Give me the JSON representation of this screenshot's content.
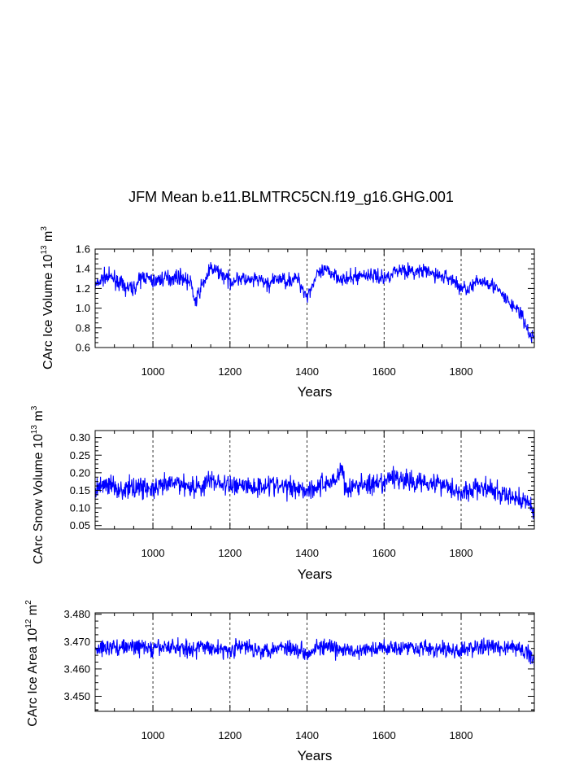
{
  "chart_data": [
    {
      "type": "line",
      "title": "JFM Mean b.e11.BLMTRC5CN.f19_g16.GHG.001",
      "xlabel": "Years",
      "ylabel": {
        "prefix": "CArc Ice Volume 10",
        "exponent": "13",
        "unit": " m",
        "unit_exponent": "3"
      },
      "xlim": [
        850,
        1990
      ],
      "ylim": [
        0.6,
        1.6
      ],
      "xticks": [
        1000,
        1200,
        1400,
        1600,
        1800
      ],
      "xtick_labels": [
        "1000",
        "1200",
        "1400",
        "1600",
        "1800"
      ],
      "yticks": [
        0.6,
        0.8,
        1.0,
        1.2,
        1.4,
        1.6
      ],
      "ytick_labels": [
        "0.6",
        "0.8",
        "1.0",
        "1.2",
        "1.4",
        "1.6"
      ],
      "grid": "dashed vertical at x ticks",
      "line_color": "#0000ff",
      "series": [
        {
          "x": [
            850,
            875,
            900,
            925,
            950,
            975,
            1000,
            1025,
            1050,
            1075,
            1100,
            1110,
            1125,
            1150,
            1175,
            1200,
            1225,
            1250,
            1275,
            1300,
            1325,
            1350,
            1375,
            1400,
            1425,
            1450,
            1475,
            1500,
            1525,
            1550,
            1575,
            1600,
            1625,
            1650,
            1675,
            1700,
            1725,
            1750,
            1775,
            1800,
            1825,
            1850,
            1875,
            1900,
            1925,
            1950,
            1975,
            1990
          ],
          "values": [
            1.22,
            1.32,
            1.3,
            1.21,
            1.2,
            1.33,
            1.27,
            1.3,
            1.31,
            1.32,
            1.24,
            1.05,
            1.21,
            1.4,
            1.36,
            1.27,
            1.31,
            1.27,
            1.29,
            1.24,
            1.3,
            1.28,
            1.3,
            1.12,
            1.33,
            1.38,
            1.34,
            1.28,
            1.32,
            1.34,
            1.33,
            1.3,
            1.37,
            1.4,
            1.36,
            1.38,
            1.35,
            1.32,
            1.3,
            1.2,
            1.21,
            1.28,
            1.26,
            1.16,
            1.05,
            0.98,
            0.75,
            0.68
          ]
        }
      ]
    },
    {
      "type": "line",
      "xlabel": "Years",
      "ylabel": {
        "prefix": "CArc Snow Volume 10",
        "exponent": "13",
        "unit": " m",
        "unit_exponent": "3"
      },
      "xlim": [
        850,
        1990
      ],
      "ylim": [
        0.04,
        0.32
      ],
      "xticks": [
        1000,
        1200,
        1400,
        1600,
        1800
      ],
      "xtick_labels": [
        "1000",
        "1200",
        "1400",
        "1600",
        "1800"
      ],
      "yticks": [
        0.05,
        0.1,
        0.15,
        0.2,
        0.25,
        0.3
      ],
      "ytick_labels": [
        "0.05",
        "0.10",
        "0.15",
        "0.20",
        "0.25",
        "0.30"
      ],
      "grid": "dashed vertical at x ticks",
      "line_color": "#0000ff",
      "series": [
        {
          "x": [
            850,
            875,
            900,
            925,
            950,
            975,
            1000,
            1025,
            1050,
            1075,
            1100,
            1125,
            1150,
            1175,
            1200,
            1225,
            1250,
            1275,
            1300,
            1325,
            1350,
            1375,
            1400,
            1425,
            1450,
            1475,
            1490,
            1500,
            1525,
            1550,
            1575,
            1600,
            1625,
            1650,
            1675,
            1700,
            1725,
            1750,
            1775,
            1800,
            1825,
            1850,
            1875,
            1900,
            1925,
            1950,
            1975,
            1990
          ],
          "values": [
            0.15,
            0.17,
            0.16,
            0.15,
            0.16,
            0.16,
            0.15,
            0.16,
            0.17,
            0.17,
            0.16,
            0.16,
            0.18,
            0.17,
            0.16,
            0.17,
            0.16,
            0.16,
            0.17,
            0.16,
            0.16,
            0.16,
            0.15,
            0.16,
            0.17,
            0.18,
            0.22,
            0.15,
            0.16,
            0.17,
            0.16,
            0.17,
            0.19,
            0.18,
            0.17,
            0.18,
            0.17,
            0.17,
            0.16,
            0.14,
            0.15,
            0.16,
            0.15,
            0.14,
            0.13,
            0.13,
            0.11,
            0.09
          ]
        }
      ]
    },
    {
      "type": "line",
      "xlabel": "Years",
      "ylabel": {
        "prefix": "CArc Ice Area 10",
        "exponent": "12",
        "unit": " m",
        "unit_exponent": "2"
      },
      "xlim": [
        850,
        1990
      ],
      "ylim": [
        3.4445,
        3.4805
      ],
      "xticks": [
        1000,
        1200,
        1400,
        1600,
        1800
      ],
      "xtick_labels": [
        "1000",
        "1200",
        "1400",
        "1600",
        "1800"
      ],
      "yticks": [
        3.45,
        3.46,
        3.47,
        3.48
      ],
      "ytick_labels": [
        "3.450",
        "3.460",
        "3.470",
        "3.480"
      ],
      "grid": "dashed vertical at x ticks",
      "line_color": "#0000ff",
      "series": [
        {
          "x": [
            850,
            875,
            900,
            925,
            950,
            975,
            1000,
            1025,
            1050,
            1075,
            1100,
            1125,
            1150,
            1175,
            1200,
            1225,
            1250,
            1275,
            1300,
            1325,
            1350,
            1375,
            1400,
            1425,
            1450,
            1475,
            1500,
            1525,
            1550,
            1575,
            1600,
            1625,
            1650,
            1675,
            1700,
            1725,
            1750,
            1775,
            1800,
            1825,
            1850,
            1875,
            1900,
            1925,
            1950,
            1975,
            1990
          ],
          "values": [
            3.467,
            3.468,
            3.468,
            3.468,
            3.468,
            3.468,
            3.467,
            3.468,
            3.468,
            3.468,
            3.467,
            3.468,
            3.468,
            3.467,
            3.467,
            3.468,
            3.468,
            3.467,
            3.467,
            3.468,
            3.468,
            3.467,
            3.466,
            3.468,
            3.468,
            3.467,
            3.467,
            3.466,
            3.467,
            3.467,
            3.468,
            3.468,
            3.468,
            3.468,
            3.468,
            3.467,
            3.467,
            3.467,
            3.466,
            3.468,
            3.468,
            3.468,
            3.468,
            3.468,
            3.467,
            3.466,
            3.463
          ]
        }
      ]
    }
  ]
}
